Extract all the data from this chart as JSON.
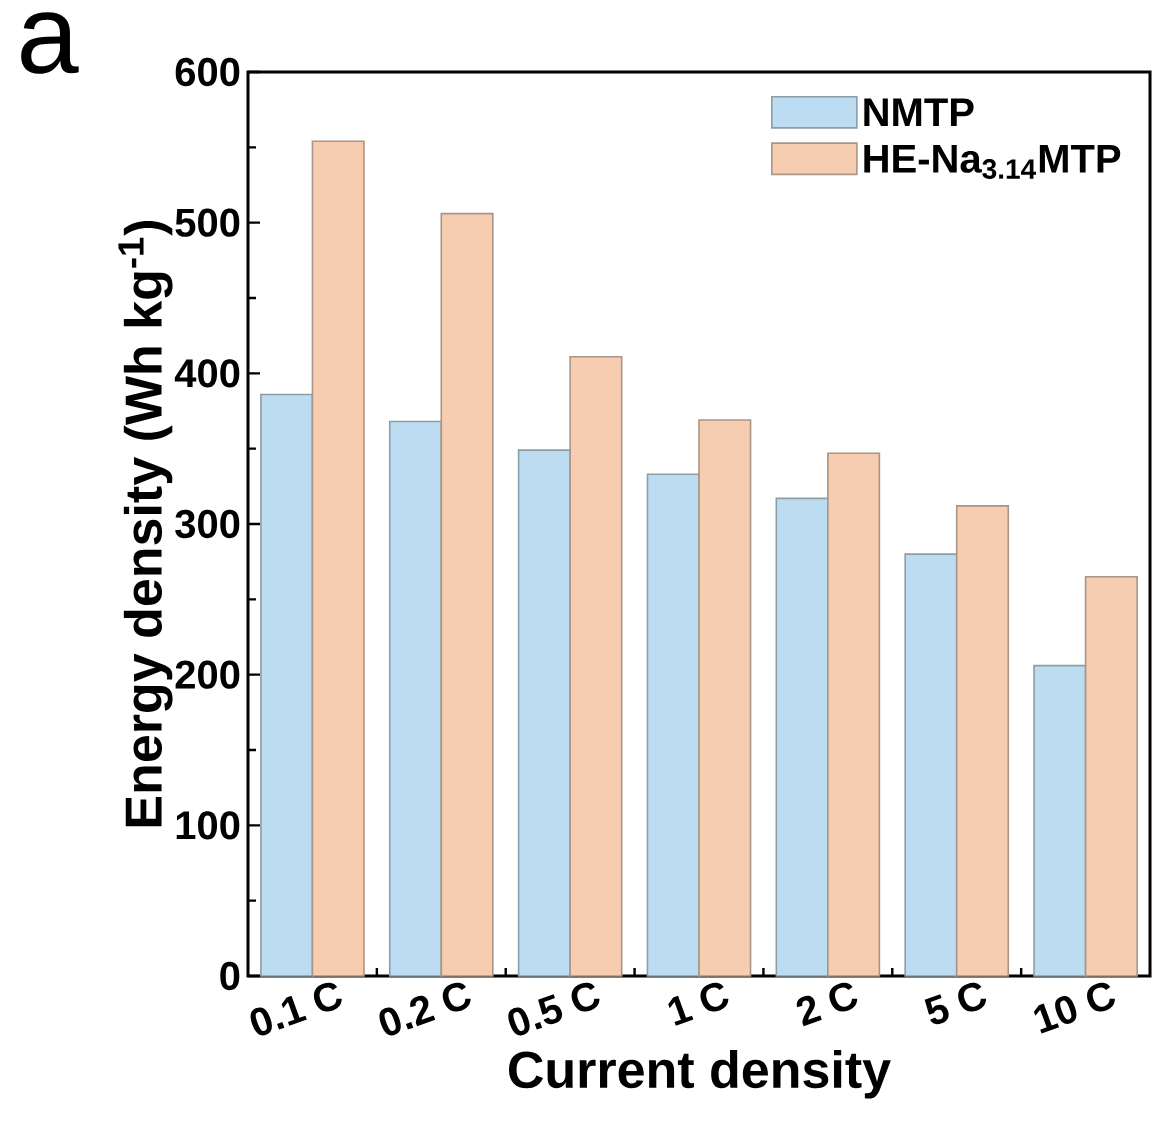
{
  "chart_data": {
    "type": "bar",
    "xlabel": "Current density",
    "ylabel": "Energy density (Wh kg$^{-1}$)",
    "annotations": [
      "a"
    ],
    "categories": [
      "0.1 C",
      "0.2 C",
      "0.5 C",
      "1 C",
      "2 C",
      "5 C",
      "10 C"
    ],
    "series": [
      {
        "name": "NMTP",
        "color": "#bcdcf2",
        "values": [
          386,
          368,
          349,
          333,
          317,
          280,
          206
        ]
      },
      {
        "name": "HE-Na$_{3.14}$MTP",
        "color": "#f6cdb0",
        "values": [
          554,
          506,
          411,
          369,
          347,
          312,
          265
        ]
      }
    ],
    "ylim": [
      0,
      600
    ],
    "yticks": [
      0,
      100,
      200,
      300,
      400,
      500,
      600
    ],
    "legend": "top right",
    "grid": false
  }
}
